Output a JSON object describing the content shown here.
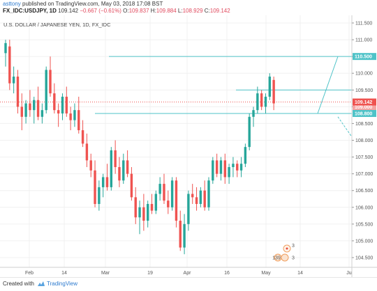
{
  "header": {
    "author": "asttony",
    "published_text": "published on TradingView.com, May 03, 2018 17:08 BST",
    "symbol": "FX_IDC:USDJPY, 1D",
    "last": "109.142",
    "change": "−0.667 (−0.61%)",
    "o_label": "O:",
    "o_val": "109.837",
    "h_label": "H:",
    "h_val": "109.884",
    "l_label": "L:",
    "l_val": "108.929",
    "c_label": "C:",
    "c_val": "109.142"
  },
  "chart": {
    "symbol_description": "U.S. DOLLAR / JAPANESE YEN, 1D, FX_IDC",
    "y_ticks": [
      "111.500",
      "111.000",
      "110.500",
      "110.000",
      "109.500",
      "109.000",
      "108.500",
      "108.000",
      "107.500",
      "107.000",
      "106.500",
      "106.000",
      "105.500",
      "105.000",
      "104.500"
    ],
    "x_ticks": [
      "Feb",
      "14",
      "Mar",
      "19",
      "Apr",
      "16",
      "May",
      "14",
      "Ju"
    ],
    "price_label_current": "109.142",
    "price_label_top": "110.500",
    "price_label_bottom": "108.800",
    "price_label_hidden": "109.000",
    "event_count_a": "139",
    "event_count_b": "3",
    "event_count_c": "3"
  },
  "colors": {
    "up": "#26a69a",
    "down": "#ef5350",
    "trendline": "#4fc3c8",
    "current_price": "#ef5350",
    "grid": "#f0f0f0"
  },
  "chart_data": {
    "type": "candlestick",
    "title": "U.S. DOLLAR / JAPANESE YEN, 1D, FX_IDC",
    "ylim": [
      104.2,
      111.8
    ],
    "horizontal_levels": [
      110.5,
      109.5,
      108.8
    ],
    "candles": [
      {
        "o": 110.6,
        "h": 111.0,
        "l": 110.2,
        "c": 110.9
      },
      {
        "o": 110.8,
        "h": 111.0,
        "l": 109.5,
        "c": 109.7
      },
      {
        "o": 109.7,
        "h": 110.2,
        "l": 109.4,
        "c": 109.9
      },
      {
        "o": 109.9,
        "h": 110.1,
        "l": 108.8,
        "c": 109.0
      },
      {
        "o": 109.0,
        "h": 109.4,
        "l": 108.3,
        "c": 108.7
      },
      {
        "o": 108.7,
        "h": 109.2,
        "l": 108.5,
        "c": 109.1
      },
      {
        "o": 109.1,
        "h": 109.5,
        "l": 108.7,
        "c": 108.9
      },
      {
        "o": 108.9,
        "h": 109.3,
        "l": 108.5,
        "c": 109.2
      },
      {
        "o": 109.2,
        "h": 109.6,
        "l": 108.6,
        "c": 108.7
      },
      {
        "o": 108.7,
        "h": 109.1,
        "l": 108.5,
        "c": 108.9
      },
      {
        "o": 108.9,
        "h": 110.2,
        "l": 108.8,
        "c": 110.1
      },
      {
        "o": 110.1,
        "h": 110.5,
        "l": 109.3,
        "c": 109.4
      },
      {
        "o": 109.4,
        "h": 109.7,
        "l": 108.8,
        "c": 108.9
      },
      {
        "o": 108.9,
        "h": 109.1,
        "l": 108.4,
        "c": 108.8
      },
      {
        "o": 108.8,
        "h": 109.4,
        "l": 108.6,
        "c": 109.3
      },
      {
        "o": 109.3,
        "h": 109.6,
        "l": 108.7,
        "c": 108.8
      },
      {
        "o": 108.8,
        "h": 109.0,
        "l": 108.3,
        "c": 108.6
      },
      {
        "o": 108.6,
        "h": 109.1,
        "l": 108.4,
        "c": 108.9
      },
      {
        "o": 108.9,
        "h": 109.3,
        "l": 108.2,
        "c": 108.3
      },
      {
        "o": 108.3,
        "h": 108.6,
        "l": 107.8,
        "c": 107.9
      },
      {
        "o": 107.9,
        "h": 108.2,
        "l": 107.2,
        "c": 107.4
      },
      {
        "o": 107.4,
        "h": 107.6,
        "l": 106.9,
        "c": 107.1
      },
      {
        "o": 107.1,
        "h": 107.4,
        "l": 106.0,
        "c": 106.1
      },
      {
        "o": 106.1,
        "h": 106.8,
        "l": 105.9,
        "c": 106.6
      },
      {
        "o": 106.6,
        "h": 107.0,
        "l": 106.3,
        "c": 106.9
      },
      {
        "o": 106.9,
        "h": 107.3,
        "l": 106.5,
        "c": 106.6
      },
      {
        "o": 106.6,
        "h": 107.8,
        "l": 106.5,
        "c": 107.7
      },
      {
        "o": 107.7,
        "h": 108.0,
        "l": 107.0,
        "c": 107.2
      },
      {
        "o": 107.2,
        "h": 107.5,
        "l": 106.6,
        "c": 106.8
      },
      {
        "o": 106.8,
        "h": 107.6,
        "l": 106.7,
        "c": 107.4
      },
      {
        "o": 107.4,
        "h": 107.7,
        "l": 106.9,
        "c": 107.0
      },
      {
        "o": 107.0,
        "h": 107.2,
        "l": 106.2,
        "c": 106.3
      },
      {
        "o": 106.3,
        "h": 106.6,
        "l": 105.5,
        "c": 105.7
      },
      {
        "o": 105.7,
        "h": 106.2,
        "l": 105.2,
        "c": 106.0
      },
      {
        "o": 106.0,
        "h": 106.4,
        "l": 105.3,
        "c": 105.6
      },
      {
        "o": 105.6,
        "h": 106.2,
        "l": 105.4,
        "c": 106.1
      },
      {
        "o": 106.1,
        "h": 106.4,
        "l": 105.8,
        "c": 105.9
      },
      {
        "o": 105.9,
        "h": 106.5,
        "l": 105.8,
        "c": 106.4
      },
      {
        "o": 106.4,
        "h": 106.9,
        "l": 106.2,
        "c": 106.7
      },
      {
        "o": 106.7,
        "h": 107.0,
        "l": 106.1,
        "c": 106.2
      },
      {
        "o": 106.2,
        "h": 106.5,
        "l": 105.8,
        "c": 106.0
      },
      {
        "o": 106.0,
        "h": 106.9,
        "l": 105.9,
        "c": 106.8
      },
      {
        "o": 106.8,
        "h": 106.9,
        "l": 105.4,
        "c": 105.6
      },
      {
        "o": 105.6,
        "h": 105.9,
        "l": 104.7,
        "c": 104.8
      },
      {
        "o": 104.8,
        "h": 105.8,
        "l": 104.6,
        "c": 105.5
      },
      {
        "o": 105.5,
        "h": 106.5,
        "l": 105.3,
        "c": 106.4
      },
      {
        "o": 106.4,
        "h": 106.7,
        "l": 106.1,
        "c": 106.3
      },
      {
        "o": 106.3,
        "h": 106.6,
        "l": 105.9,
        "c": 106.1
      },
      {
        "o": 106.1,
        "h": 106.6,
        "l": 106.0,
        "c": 106.5
      },
      {
        "o": 106.5,
        "h": 106.8,
        "l": 105.9,
        "c": 106.0
      },
      {
        "o": 106.0,
        "h": 106.9,
        "l": 105.9,
        "c": 106.8
      },
      {
        "o": 106.8,
        "h": 107.5,
        "l": 106.7,
        "c": 107.4
      },
      {
        "o": 107.4,
        "h": 107.6,
        "l": 106.9,
        "c": 107.0
      },
      {
        "o": 107.0,
        "h": 107.5,
        "l": 106.8,
        "c": 107.4
      },
      {
        "o": 107.4,
        "h": 107.6,
        "l": 106.7,
        "c": 106.9
      },
      {
        "o": 106.9,
        "h": 107.3,
        "l": 106.7,
        "c": 107.2
      },
      {
        "o": 107.2,
        "h": 107.5,
        "l": 106.9,
        "c": 107.3
      },
      {
        "o": 107.3,
        "h": 107.4,
        "l": 106.9,
        "c": 107.1
      },
      {
        "o": 107.1,
        "h": 107.5,
        "l": 106.9,
        "c": 107.3
      },
      {
        "o": 107.3,
        "h": 107.9,
        "l": 107.2,
        "c": 107.8
      },
      {
        "o": 107.8,
        "h": 108.8,
        "l": 107.7,
        "c": 108.7
      },
      {
        "o": 108.7,
        "h": 109.0,
        "l": 108.4,
        "c": 108.9
      },
      {
        "o": 108.9,
        "h": 109.6,
        "l": 108.8,
        "c": 109.4
      },
      {
        "o": 109.4,
        "h": 109.5,
        "l": 108.9,
        "c": 109.0
      },
      {
        "o": 109.0,
        "h": 109.4,
        "l": 108.8,
        "c": 109.3
      },
      {
        "o": 109.3,
        "h": 110.0,
        "l": 109.2,
        "c": 109.9
      },
      {
        "o": 109.8,
        "h": 109.9,
        "l": 108.9,
        "c": 109.1
      }
    ]
  },
  "footer": {
    "created_with": "Created with",
    "brand": "TradingView"
  }
}
